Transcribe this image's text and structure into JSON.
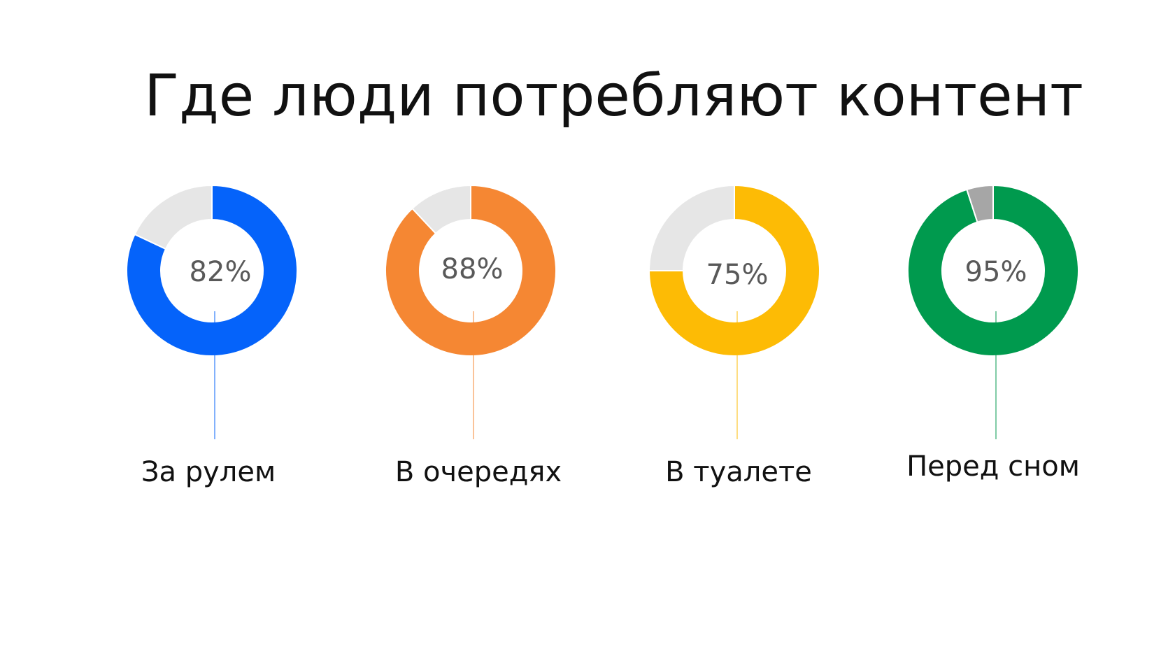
{
  "title": "Где люди потребляют контент",
  "chart_data": [
    {
      "type": "pie",
      "title": "",
      "label": "За рулем",
      "value": 82,
      "value_label": "82%",
      "slices": [
        {
          "name": "За рулем",
          "value": 82,
          "color": "#0563FA"
        },
        {
          "name": "",
          "value": 18,
          "color": "#E6E6E6"
        }
      ]
    },
    {
      "type": "pie",
      "title": "",
      "label": "В очередях",
      "value": 88,
      "value_label": "88%",
      "slices": [
        {
          "name": "В очередях",
          "value": 88,
          "color": "#F58733"
        },
        {
          "name": "",
          "value": 12,
          "color": "#E6E6E6"
        }
      ]
    },
    {
      "type": "pie",
      "title": "",
      "label": "В туалете",
      "value": 75,
      "value_label": "75%",
      "slices": [
        {
          "name": "В туалете",
          "value": 75,
          "color": "#FDBB05"
        },
        {
          "name": "",
          "value": 25,
          "color": "#E6E6E6"
        }
      ]
    },
    {
      "type": "pie",
      "title": "",
      "label": "Перед сном",
      "value": 95,
      "value_label": "95%",
      "slices": [
        {
          "name": "Перед сном",
          "value": 95,
          "color": "#009A4E"
        },
        {
          "name": "",
          "value": 5,
          "color": "#A6A6A6"
        }
      ]
    }
  ]
}
